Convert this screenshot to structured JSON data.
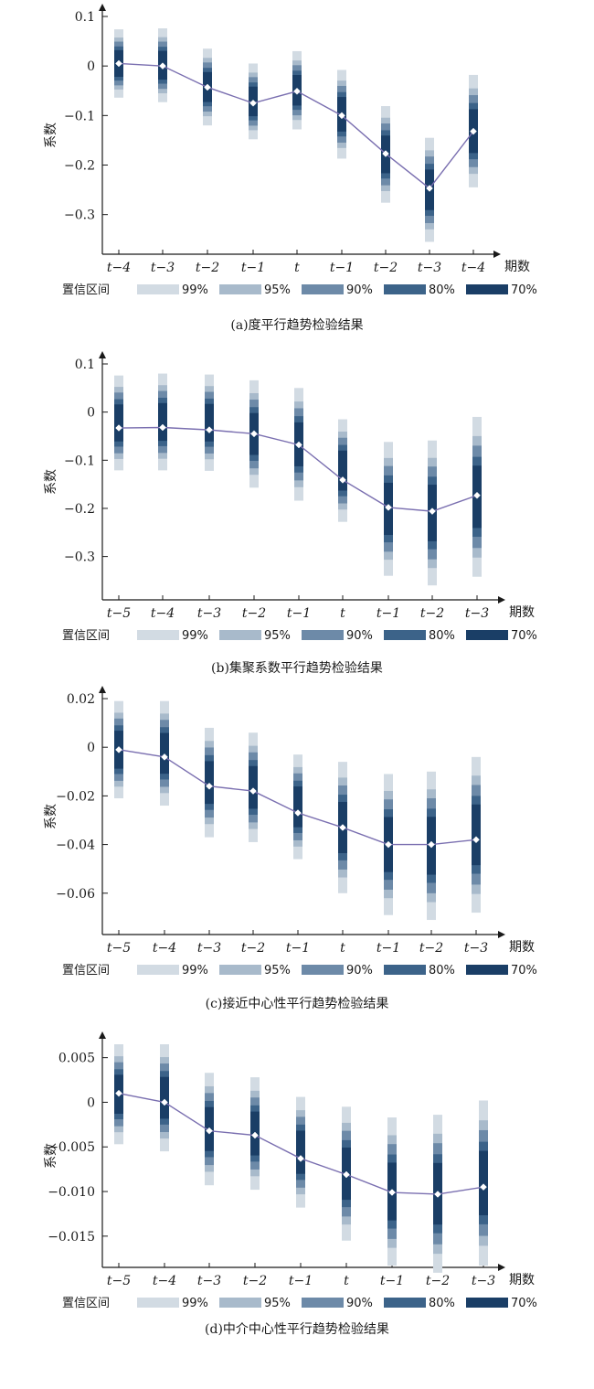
{
  "legend": {
    "title": "置信区间",
    "items": [
      {
        "label": "99%",
        "color": "#d2dbe3"
      },
      {
        "label": "95%",
        "color": "#a8bacb"
      },
      {
        "label": "90%",
        "color": "#6d8aa8"
      },
      {
        "label": "80%",
        "color": "#3c6389"
      },
      {
        "label": "70%",
        "color": "#1a3e66"
      }
    ]
  },
  "chart_data": [
    {
      "type": "line",
      "caption": "(a)度平行趋势检验结果",
      "ylabel": "系数",
      "xlabel": "期数",
      "categories": [
        "t−4",
        "t−3",
        "t−2",
        "t−1",
        "t",
        "t−1",
        "t−2",
        "t−3",
        "t−4"
      ],
      "ylim": [
        -0.38,
        0.1
      ],
      "yticks": [
        0.1,
        0,
        -0.1,
        -0.2,
        -0.3
      ],
      "ytick_labels": [
        "0.1",
        "0",
        "−0.1",
        "−0.2",
        "−0.3"
      ],
      "values": [
        0.005,
        0.0,
        -0.043,
        -0.075,
        -0.051,
        -0.1,
        -0.177,
        -0.247,
        -0.132
      ],
      "ci99_lower": [
        -0.064,
        -0.073,
        -0.12,
        -0.148,
        -0.128,
        -0.187,
        -0.276,
        -0.355,
        -0.245
      ],
      "ci99_upper": [
        0.074,
        0.076,
        0.035,
        0.005,
        0.03,
        -0.008,
        -0.081,
        -0.145,
        -0.018
      ]
    },
    {
      "type": "line",
      "caption": "(b)集聚系数平行趋势检验结果",
      "ylabel": "系数",
      "xlabel": "期数",
      "categories": [
        "t−5",
        "t−4",
        "t−3",
        "t−2",
        "t−1",
        "t",
        "t−1",
        "t−2",
        "t−3"
      ],
      "ylim": [
        -0.39,
        0.1
      ],
      "yticks": [
        0.1,
        0,
        -0.1,
        -0.2,
        -0.3
      ],
      "ytick_labels": [
        "0.1",
        "0",
        "−0.1",
        "−0.2",
        "−0.3"
      ],
      "values": [
        -0.033,
        -0.032,
        -0.037,
        -0.045,
        -0.068,
        -0.141,
        -0.198,
        -0.206,
        -0.173
      ],
      "ci99_lower": [
        -0.121,
        -0.121,
        -0.122,
        -0.157,
        -0.184,
        -0.228,
        -0.34,
        -0.36,
        -0.342
      ],
      "ci99_upper": [
        0.076,
        0.08,
        0.078,
        0.066,
        0.05,
        -0.015,
        -0.062,
        -0.059,
        -0.01
      ]
    },
    {
      "type": "line",
      "caption": "(c)接近中心性平行趋势检验结果",
      "ylabel": "系数",
      "xlabel": "期数",
      "categories": [
        "t−5",
        "t−4",
        "t−3",
        "t−2",
        "t−1",
        "t",
        "t−1",
        "t−2",
        "t−3"
      ],
      "ylim": [
        -0.077,
        0.02
      ],
      "yticks": [
        0.02,
        0,
        -0.02,
        -0.04,
        -0.06
      ],
      "ytick_labels": [
        "0.02",
        "0",
        "−0.02",
        "−0.04",
        "−0.06"
      ],
      "values": [
        -0.001,
        -0.004,
        -0.016,
        -0.018,
        -0.027,
        -0.033,
        -0.04,
        -0.04,
        -0.038
      ],
      "ci99_lower": [
        -0.021,
        -0.024,
        -0.037,
        -0.039,
        -0.046,
        -0.06,
        -0.069,
        -0.071,
        -0.068
      ],
      "ci99_upper": [
        0.019,
        0.019,
        0.008,
        0.006,
        -0.003,
        -0.006,
        -0.011,
        -0.01,
        -0.004
      ]
    },
    {
      "type": "line",
      "caption": "(d)中介中心性平行趋势检验结果",
      "ylabel": "系数",
      "xlabel": "期数",
      "categories": [
        "t−5",
        "t−4",
        "t−3",
        "t−2",
        "t−1",
        "t",
        "t−1",
        "t−2",
        "t−3"
      ],
      "ylim": [
        -0.0185,
        0.0065
      ],
      "yticks": [
        0.005,
        0,
        -0.005,
        -0.01,
        -0.015
      ],
      "ytick_labels": [
        "0.005",
        "0",
        "−0.005",
        "−0.010",
        "−0.015"
      ],
      "values": [
        0.001,
        0.0,
        -0.0032,
        -0.0037,
        -0.0063,
        -0.0081,
        -0.0101,
        -0.0103,
        -0.0095
      ],
      "ci99_lower": [
        -0.0047,
        -0.0055,
        -0.0093,
        -0.0098,
        -0.0118,
        -0.0155,
        -0.0183,
        -0.0191,
        -0.0183
      ],
      "ci99_upper": [
        0.0065,
        0.0065,
        0.0033,
        0.0028,
        0.0006,
        -0.0005,
        -0.0017,
        -0.0014,
        0.0002
      ]
    }
  ]
}
